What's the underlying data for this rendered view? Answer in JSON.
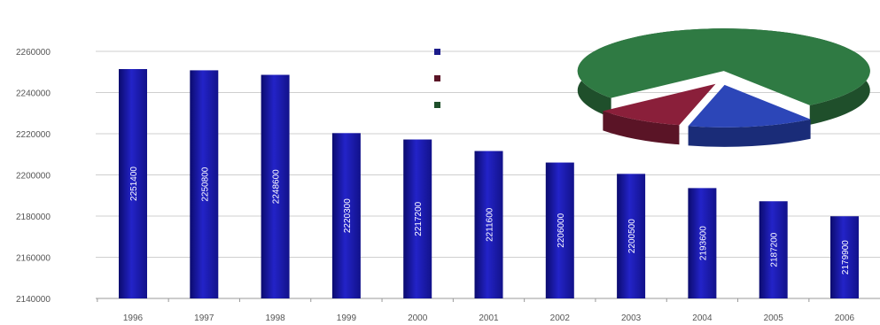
{
  "chart_data": [
    {
      "type": "bar",
      "categories": [
        "1996",
        "1997",
        "1998",
        "1999",
        "2000",
        "2001",
        "2002",
        "2003",
        "2004",
        "2005",
        "2006"
      ],
      "values": [
        2251400,
        2250800,
        2248600,
        2220300,
        2217200,
        2211600,
        2206000,
        2200500,
        2193600,
        2187200,
        2179900
      ],
      "value_labels": [
        "2251400",
        "2250800",
        "2248600",
        "2220300",
        "2217200",
        "2211600",
        "2206000",
        "2200500",
        "2193600",
        "2187200",
        "2179900"
      ],
      "ylim": [
        2140000,
        2260000
      ],
      "yticks": [
        2140000,
        2160000,
        2180000,
        2200000,
        2220000,
        2240000,
        2260000
      ],
      "ytick_labels": [
        "2140000",
        "2160000",
        "2180000",
        "2200000",
        "2220000",
        "2240000",
        "2260000"
      ],
      "grid": true,
      "colors": {
        "bar": "#1c1cb8",
        "bar_dark": "#0b0b6e",
        "grid": "#cfcfcf"
      }
    },
    {
      "type": "pie",
      "slices": [
        {
          "value": 76,
          "color": "#2f7a43",
          "dark": "#1f4f2b"
        },
        {
          "value": 14,
          "color": "#2c46b8",
          "dark": "#1a2c78"
        },
        {
          "value": 10,
          "color": "#8a1f3a",
          "dark": "#5a1426"
        }
      ],
      "legend_position": "left of pie",
      "legend_colors": [
        "#1c1c8a",
        "#5a1426",
        "#1f4f2b"
      ]
    }
  ]
}
